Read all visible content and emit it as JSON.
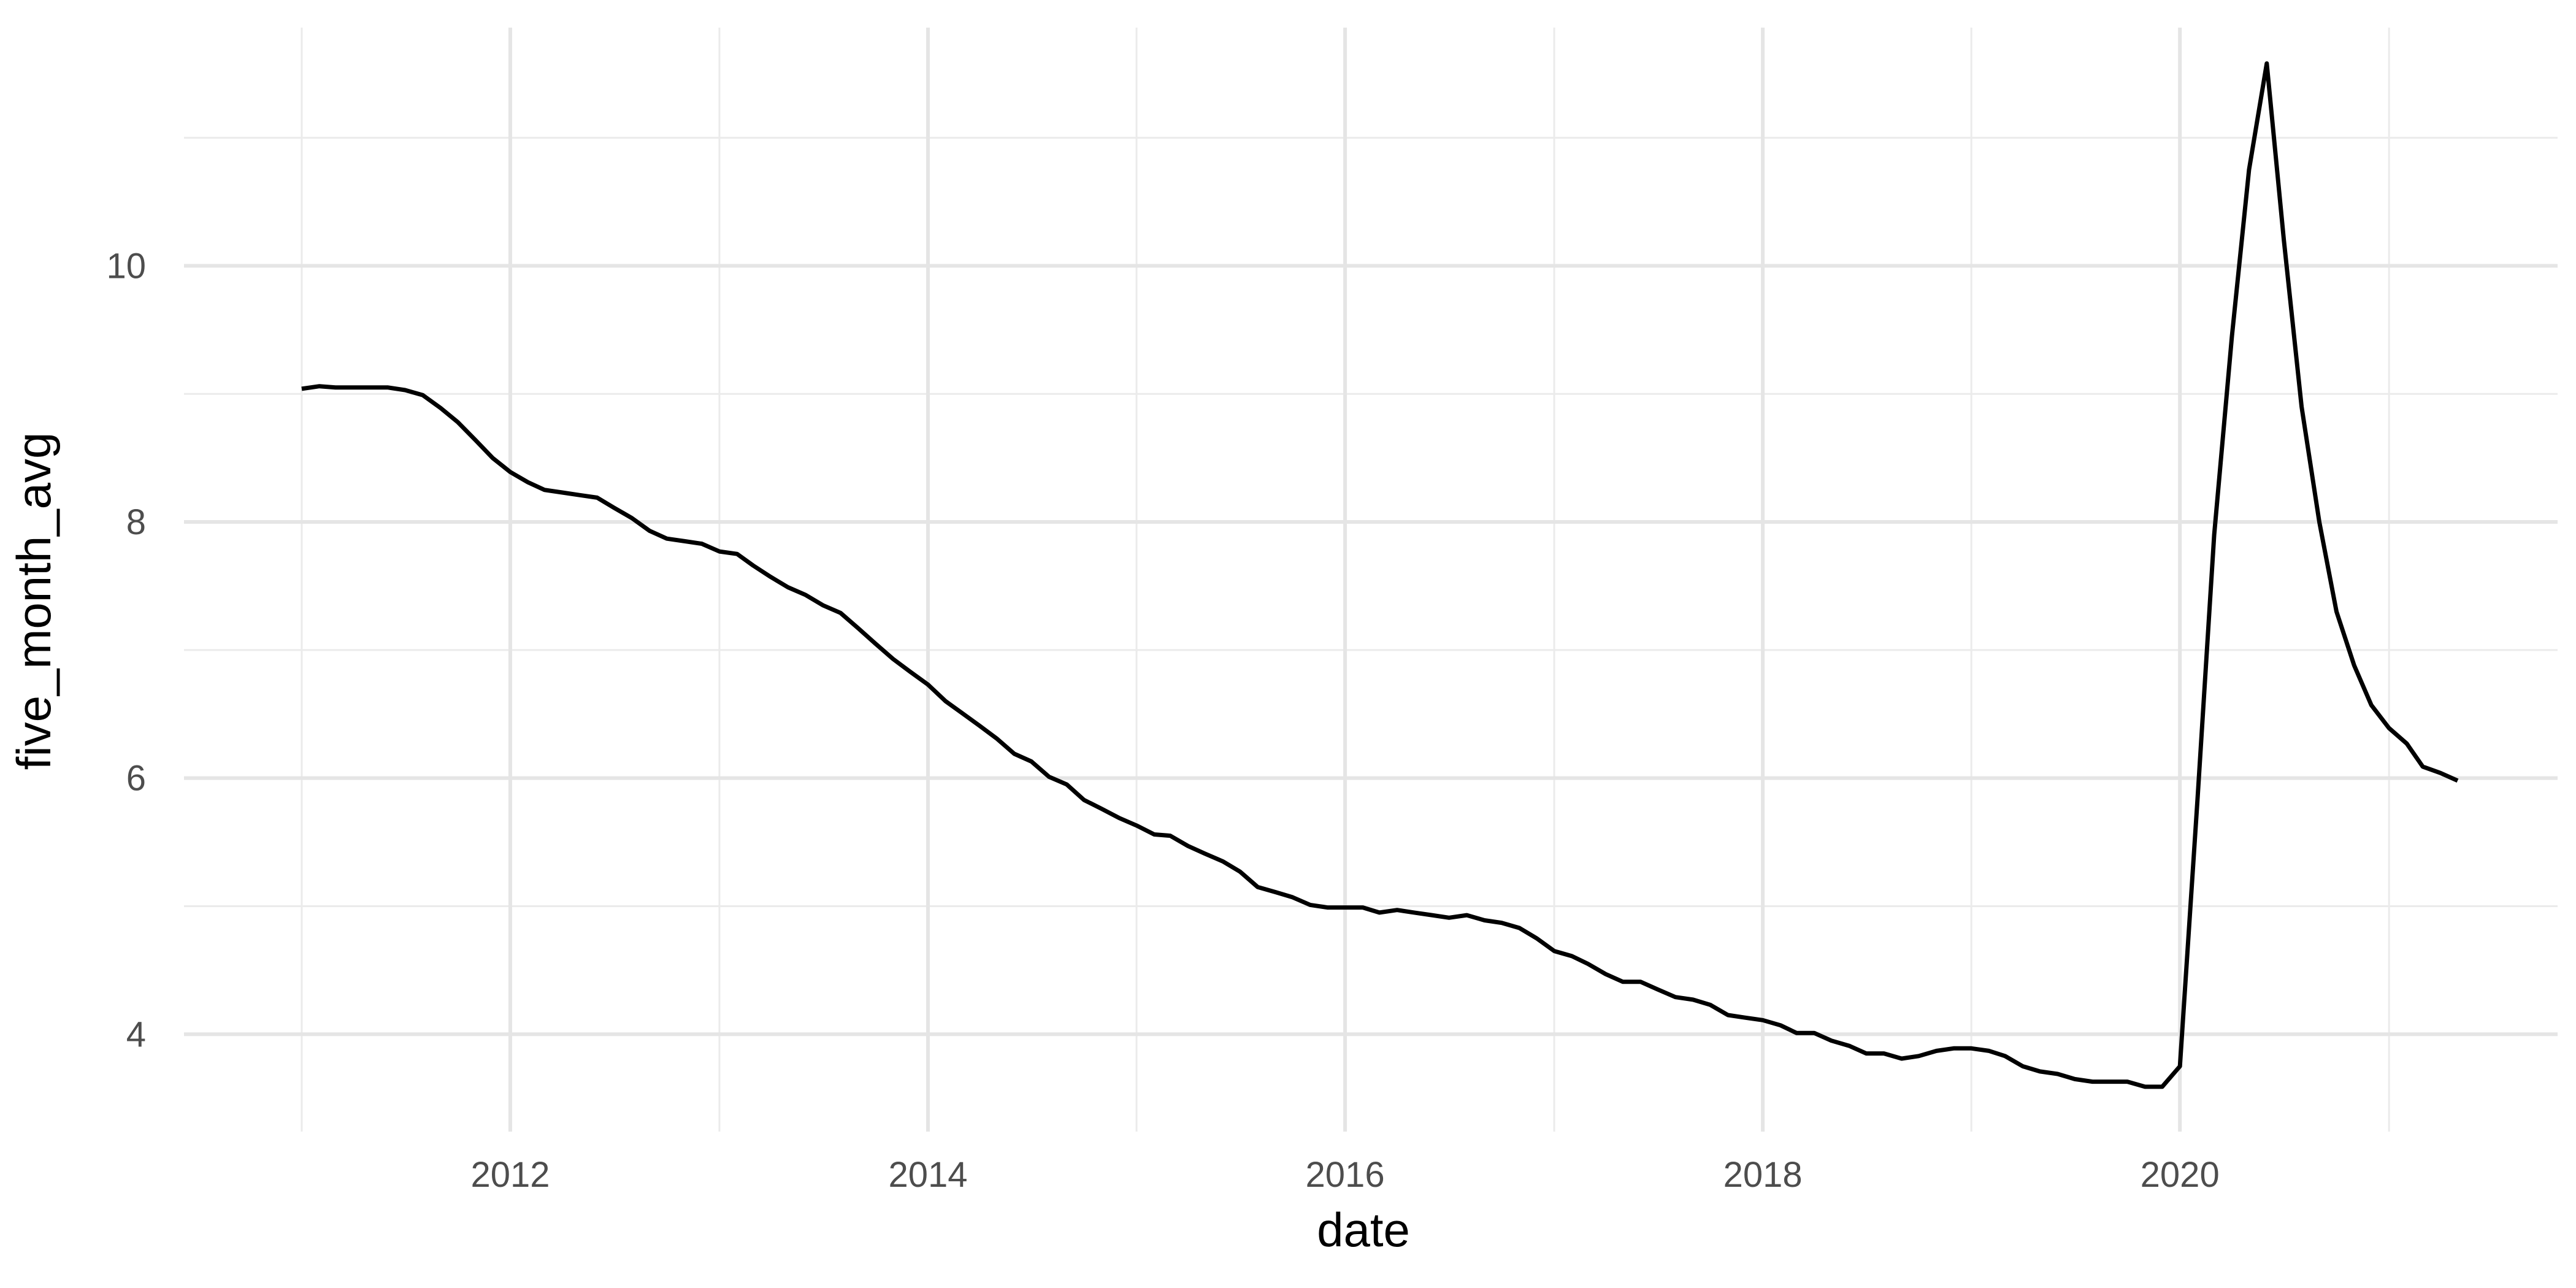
{
  "chart_data": {
    "type": "line",
    "title": "",
    "xlabel": "date",
    "ylabel": "five_month_avg",
    "x_axis_type": "date",
    "xlim": [
      "2010-06-09",
      "2021-10-23"
    ],
    "ylim": [
      3.24,
      11.86
    ],
    "x_major_ticks": [
      "2012-01-01",
      "2014-01-01",
      "2016-01-01",
      "2018-01-01",
      "2020-01-01"
    ],
    "x_tick_labels": [
      "2012",
      "2014",
      "2016",
      "2018",
      "2020"
    ],
    "x_minor_ticks": [
      "2011-01-01",
      "2013-01-01",
      "2015-01-01",
      "2017-01-01",
      "2019-01-01",
      "2021-01-01"
    ],
    "y_major_ticks": [
      4,
      6,
      8,
      10
    ],
    "y_tick_labels": [
      "4",
      "6",
      "8",
      "10"
    ],
    "y_minor_ticks": [
      5,
      7,
      9,
      11
    ],
    "grid": true,
    "legend": "none",
    "line_color": "#000000",
    "grid_color": "#e5e5e5",
    "series": [
      {
        "points": [
          [
            "2011-01-01",
            9.04
          ],
          [
            "2011-02-01",
            9.06
          ],
          [
            "2011-03-01",
            9.05
          ],
          [
            "2011-04-01",
            9.05
          ],
          [
            "2011-05-01",
            9.05
          ],
          [
            "2011-06-01",
            9.05
          ],
          [
            "2011-07-01",
            9.03
          ],
          [
            "2011-08-01",
            8.99
          ],
          [
            "2011-09-01",
            8.89
          ],
          [
            "2011-10-01",
            8.78
          ],
          [
            "2011-11-01",
            8.64
          ],
          [
            "2011-12-01",
            8.5
          ],
          [
            "2012-01-01",
            8.39
          ],
          [
            "2012-02-01",
            8.31
          ],
          [
            "2012-03-01",
            8.25
          ],
          [
            "2012-04-01",
            8.23
          ],
          [
            "2012-05-01",
            8.21
          ],
          [
            "2012-06-01",
            8.19
          ],
          [
            "2012-07-01",
            8.11
          ],
          [
            "2012-08-01",
            8.03
          ],
          [
            "2012-09-01",
            7.93
          ],
          [
            "2012-10-01",
            7.87
          ],
          [
            "2012-11-01",
            7.85
          ],
          [
            "2012-12-01",
            7.83
          ],
          [
            "2013-01-01",
            7.77
          ],
          [
            "2013-02-01",
            7.75
          ],
          [
            "2013-03-01",
            7.66
          ],
          [
            "2013-04-01",
            7.57
          ],
          [
            "2013-05-01",
            7.49
          ],
          [
            "2013-06-01",
            7.43
          ],
          [
            "2013-07-01",
            7.35
          ],
          [
            "2013-08-01",
            7.29
          ],
          [
            "2013-09-01",
            7.17
          ],
          [
            "2013-10-01",
            7.05
          ],
          [
            "2013-11-01",
            6.93
          ],
          [
            "2013-12-01",
            6.83
          ],
          [
            "2014-01-01",
            6.73
          ],
          [
            "2014-02-01",
            6.6
          ],
          [
            "2014-03-01",
            6.51
          ],
          [
            "2014-04-01",
            6.41
          ],
          [
            "2014-05-01",
            6.31
          ],
          [
            "2014-06-01",
            6.19
          ],
          [
            "2014-07-01",
            6.13
          ],
          [
            "2014-08-01",
            6.01
          ],
          [
            "2014-09-01",
            5.95
          ],
          [
            "2014-10-01",
            5.83
          ],
          [
            "2014-11-01",
            5.76
          ],
          [
            "2014-12-01",
            5.69
          ],
          [
            "2015-01-01",
            5.63
          ],
          [
            "2015-02-01",
            5.56
          ],
          [
            "2015-03-01",
            5.55
          ],
          [
            "2015-04-01",
            5.47
          ],
          [
            "2015-05-01",
            5.41
          ],
          [
            "2015-06-01",
            5.35
          ],
          [
            "2015-07-01",
            5.27
          ],
          [
            "2015-08-01",
            5.15
          ],
          [
            "2015-09-01",
            5.11
          ],
          [
            "2015-10-01",
            5.07
          ],
          [
            "2015-11-01",
            5.01
          ],
          [
            "2015-12-01",
            4.99
          ],
          [
            "2016-01-01",
            4.99
          ],
          [
            "2016-02-01",
            4.99
          ],
          [
            "2016-03-01",
            4.95
          ],
          [
            "2016-04-01",
            4.97
          ],
          [
            "2016-05-01",
            4.95
          ],
          [
            "2016-06-01",
            4.93
          ],
          [
            "2016-07-01",
            4.91
          ],
          [
            "2016-08-01",
            4.93
          ],
          [
            "2016-09-01",
            4.89
          ],
          [
            "2016-10-01",
            4.87
          ],
          [
            "2016-11-01",
            4.83
          ],
          [
            "2016-12-01",
            4.75
          ],
          [
            "2017-01-01",
            4.65
          ],
          [
            "2017-02-01",
            4.61
          ],
          [
            "2017-03-01",
            4.55
          ],
          [
            "2017-04-01",
            4.47
          ],
          [
            "2017-05-01",
            4.41
          ],
          [
            "2017-06-01",
            4.41
          ],
          [
            "2017-07-01",
            4.35
          ],
          [
            "2017-08-01",
            4.29
          ],
          [
            "2017-09-01",
            4.27
          ],
          [
            "2017-10-01",
            4.23
          ],
          [
            "2017-11-01",
            4.15
          ],
          [
            "2017-12-01",
            4.13
          ],
          [
            "2018-01-01",
            4.11
          ],
          [
            "2018-02-01",
            4.07
          ],
          [
            "2018-03-01",
            4.01
          ],
          [
            "2018-04-01",
            4.01
          ],
          [
            "2018-05-01",
            3.95
          ],
          [
            "2018-06-01",
            3.91
          ],
          [
            "2018-07-01",
            3.85
          ],
          [
            "2018-08-01",
            3.85
          ],
          [
            "2018-09-01",
            3.81
          ],
          [
            "2018-10-01",
            3.83
          ],
          [
            "2018-11-01",
            3.87
          ],
          [
            "2018-12-01",
            3.89
          ],
          [
            "2019-01-01",
            3.89
          ],
          [
            "2019-02-01",
            3.87
          ],
          [
            "2019-03-01",
            3.83
          ],
          [
            "2019-04-01",
            3.75
          ],
          [
            "2019-05-01",
            3.71
          ],
          [
            "2019-06-01",
            3.69
          ],
          [
            "2019-07-01",
            3.65
          ],
          [
            "2019-08-01",
            3.63
          ],
          [
            "2019-09-01",
            3.63
          ],
          [
            "2019-10-01",
            3.63
          ],
          [
            "2019-11-01",
            3.59
          ],
          [
            "2019-12-01",
            3.59
          ],
          [
            "2020-01-01",
            3.75
          ],
          [
            "2020-02-01",
            5.85
          ],
          [
            "2020-03-01",
            7.9
          ],
          [
            "2020-04-01",
            9.45
          ],
          [
            "2020-05-01",
            10.75
          ],
          [
            "2020-06-01",
            11.58
          ],
          [
            "2020-07-01",
            10.2
          ],
          [
            "2020-08-01",
            8.9
          ],
          [
            "2020-09-01",
            8.0
          ],
          [
            "2020-10-01",
            7.3
          ],
          [
            "2020-11-01",
            6.88
          ],
          [
            "2020-12-01",
            6.57
          ],
          [
            "2021-01-01",
            6.39
          ],
          [
            "2021-02-01",
            6.27
          ],
          [
            "2021-03-01",
            6.09
          ],
          [
            "2021-04-01",
            6.04
          ],
          [
            "2021-05-01",
            5.98
          ]
        ]
      }
    ]
  }
}
